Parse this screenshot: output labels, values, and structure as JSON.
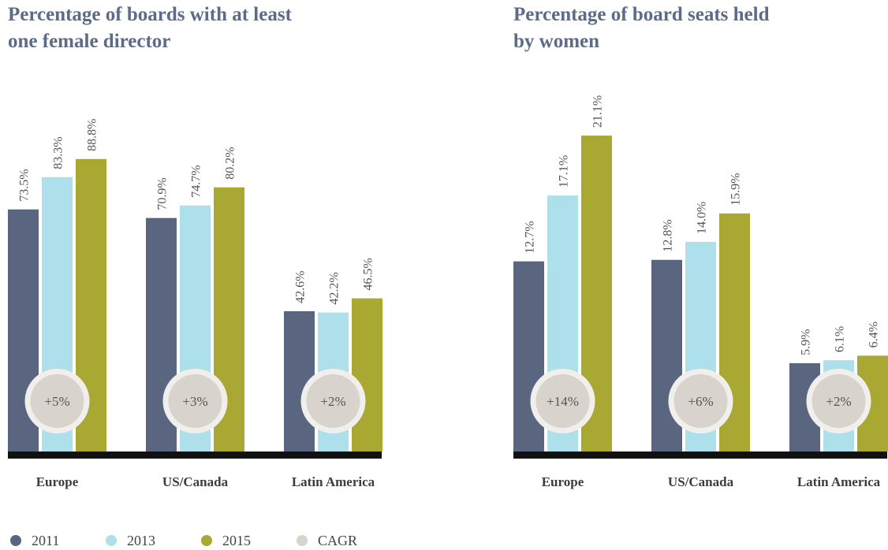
{
  "chart_data": [
    {
      "type": "bar",
      "title": "Percentage of boards with at least one female director",
      "categories": [
        "Europe",
        "US/Canada",
        "Latin America"
      ],
      "series": [
        {
          "name": "2011",
          "color": "#5a6680",
          "values": [
            73.5,
            70.9,
            42.6
          ],
          "value_labels": [
            "73.5%",
            "70.9%",
            "42.6%"
          ]
        },
        {
          "name": "2013",
          "color": "#aee0ec",
          "values": [
            83.3,
            74.7,
            42.2
          ],
          "value_labels": [
            "83.3%",
            "74.7%",
            "42.2%"
          ]
        },
        {
          "name": "2015",
          "color": "#a8a832",
          "values": [
            88.8,
            80.2,
            46.5
          ],
          "value_labels": [
            "88.8%",
            "80.2%",
            "46.5%"
          ]
        }
      ],
      "cagr": {
        "name": "CAGR",
        "color": "#d8d3cc",
        "values": [
          5,
          3,
          2
        ],
        "value_labels": [
          "+5%",
          "+3%",
          "+2%"
        ]
      },
      "ylim": [
        0,
        100
      ]
    },
    {
      "type": "bar",
      "title": "Percentage of board seats held by women",
      "categories": [
        "Europe",
        "US/Canada",
        "Latin America"
      ],
      "series": [
        {
          "name": "2011",
          "color": "#5a6680",
          "values": [
            12.7,
            12.8,
            5.9
          ],
          "value_labels": [
            "12.7%",
            "12.8%",
            "5.9%"
          ]
        },
        {
          "name": "2013",
          "color": "#aee0ec",
          "values": [
            17.1,
            14.0,
            6.1
          ],
          "value_labels": [
            "17.1%",
            "14.0%",
            "6.1%"
          ]
        },
        {
          "name": "2015",
          "color": "#a8a832",
          "values": [
            21.1,
            15.9,
            6.4
          ],
          "value_labels": [
            "21.1%",
            "15.9%",
            "6.4%"
          ]
        }
      ],
      "cagr": {
        "name": "CAGR",
        "color": "#d8d3cc",
        "values": [
          14,
          6,
          2
        ],
        "value_labels": [
          "+14%",
          "+6%",
          "+2%"
        ]
      },
      "ylim": [
        0,
        22
      ]
    }
  ]
}
